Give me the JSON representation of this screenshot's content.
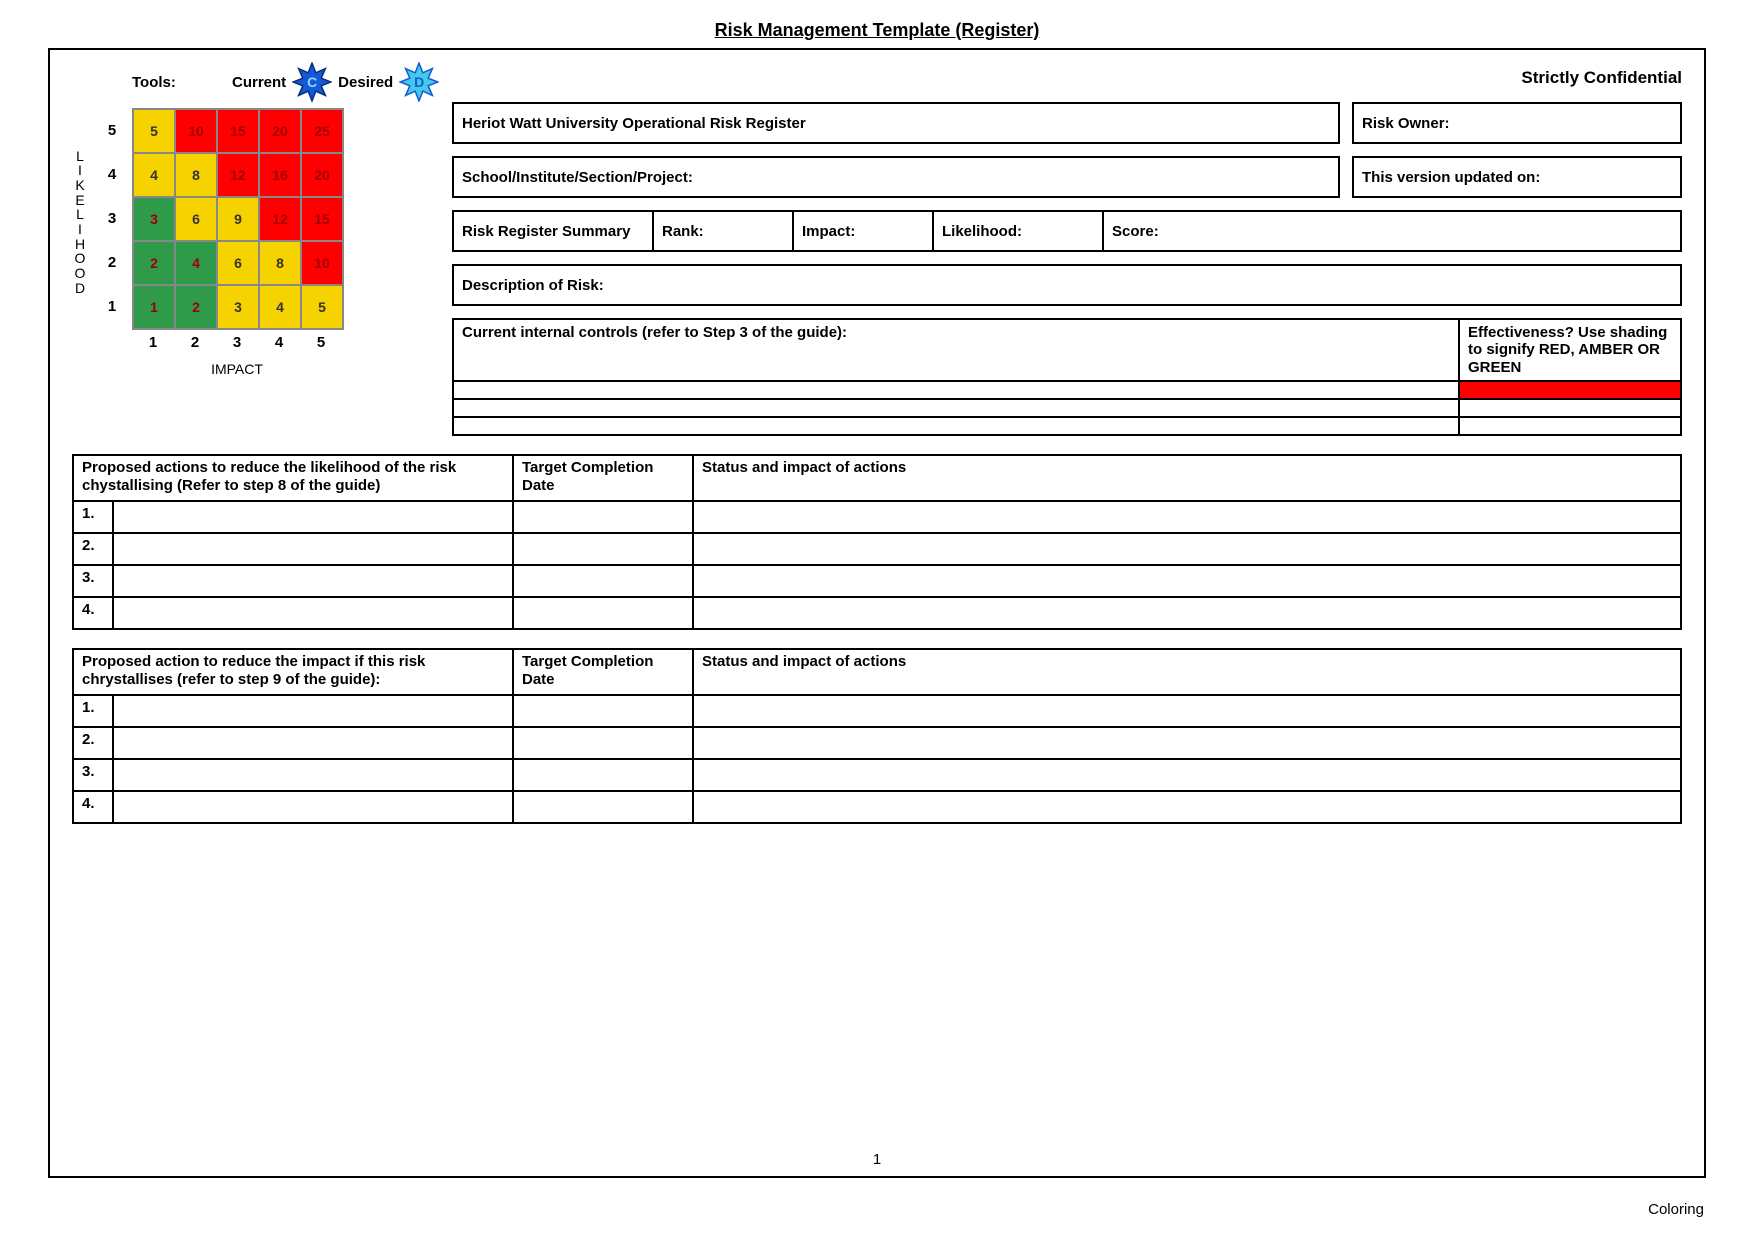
{
  "title": "Risk Management Template (Register)",
  "confidential": "Strictly Confidential",
  "tools": {
    "label": "Tools:",
    "current_label": "Current",
    "current_letter": "C",
    "current_color": "#1459d8",
    "current_stroke": "#0a2e7a",
    "desired_label": "Desired",
    "desired_letter": "D",
    "desired_color": "#45c8ea",
    "desired_stroke": "#1459d8"
  },
  "matrix": {
    "y_label": "LIKELIHOOD",
    "x_label": "IMPACT",
    "y_ticks": [
      "5",
      "4",
      "3",
      "2",
      "1"
    ],
    "x_ticks": [
      "1",
      "2",
      "3",
      "4",
      "5"
    ],
    "colors": {
      "green": "#2e9a4a",
      "yellow": "#f6d200",
      "red": "#ff0000"
    },
    "text_colors": {
      "dark": "#333333",
      "red": "#a00000"
    },
    "cell_size": {
      "w": 42,
      "h": 44
    },
    "cells": [
      [
        {
          "v": "5",
          "c": "yellow",
          "t": "dark"
        },
        {
          "v": "10",
          "c": "red",
          "t": "red"
        },
        {
          "v": "15",
          "c": "red",
          "t": "red"
        },
        {
          "v": "20",
          "c": "red",
          "t": "red"
        },
        {
          "v": "25",
          "c": "red",
          "t": "red"
        }
      ],
      [
        {
          "v": "4",
          "c": "yellow",
          "t": "dark"
        },
        {
          "v": "8",
          "c": "yellow",
          "t": "dark"
        },
        {
          "v": "12",
          "c": "red",
          "t": "red"
        },
        {
          "v": "16",
          "c": "red",
          "t": "red"
        },
        {
          "v": "20",
          "c": "red",
          "t": "red"
        }
      ],
      [
        {
          "v": "3",
          "c": "green",
          "t": "red"
        },
        {
          "v": "6",
          "c": "yellow",
          "t": "dark"
        },
        {
          "v": "9",
          "c": "yellow",
          "t": "dark"
        },
        {
          "v": "12",
          "c": "red",
          "t": "red"
        },
        {
          "v": "15",
          "c": "red",
          "t": "red"
        }
      ],
      [
        {
          "v": "2",
          "c": "green",
          "t": "red"
        },
        {
          "v": "4",
          "c": "green",
          "t": "red"
        },
        {
          "v": "6",
          "c": "yellow",
          "t": "dark"
        },
        {
          "v": "8",
          "c": "yellow",
          "t": "dark"
        },
        {
          "v": "10",
          "c": "red",
          "t": "red"
        }
      ],
      [
        {
          "v": "1",
          "c": "green",
          "t": "red"
        },
        {
          "v": "2",
          "c": "green",
          "t": "red"
        },
        {
          "v": "3",
          "c": "yellow",
          "t": "dark"
        },
        {
          "v": "4",
          "c": "yellow",
          "t": "dark"
        },
        {
          "v": "5",
          "c": "yellow",
          "t": "dark"
        }
      ]
    ]
  },
  "fields": {
    "org": "Heriot Watt University Operational Risk Register",
    "owner": "Risk Owner:",
    "section": "School/Institute/Section/Project:",
    "version": "This version updated on:",
    "summary": "Risk Register Summary",
    "rank": "Rank:",
    "impact": "Impact:",
    "likelihood": "Likelihood:",
    "score": "Score:",
    "description": "Description of Risk:",
    "controls": "Current internal controls (refer to Step 3 of the guide):",
    "effectiveness": "Effectiveness? Use shading to signify RED, AMBER OR GREEN",
    "control_row_fills": [
      "#ff0000",
      "#ffffff",
      "#ffffff"
    ]
  },
  "actions_likelihood": {
    "header_main": "Proposed actions to reduce the likelihood of the risk chystallising (Refer to step 8 of the guide)",
    "header_date": "Target Completion Date",
    "header_status": "Status and impact of actions",
    "rows": [
      "1.",
      "2.",
      "3.",
      "4."
    ]
  },
  "actions_impact": {
    "header_main": "Proposed action to reduce the impact if this risk chrystallises (refer to step 9 of the guide):",
    "header_date": "Target Completion Date",
    "header_status": "Status and impact of actions",
    "rows": [
      "1.",
      "2.",
      "3.",
      "4."
    ]
  },
  "page_number": "1",
  "watermark": "Coloring"
}
